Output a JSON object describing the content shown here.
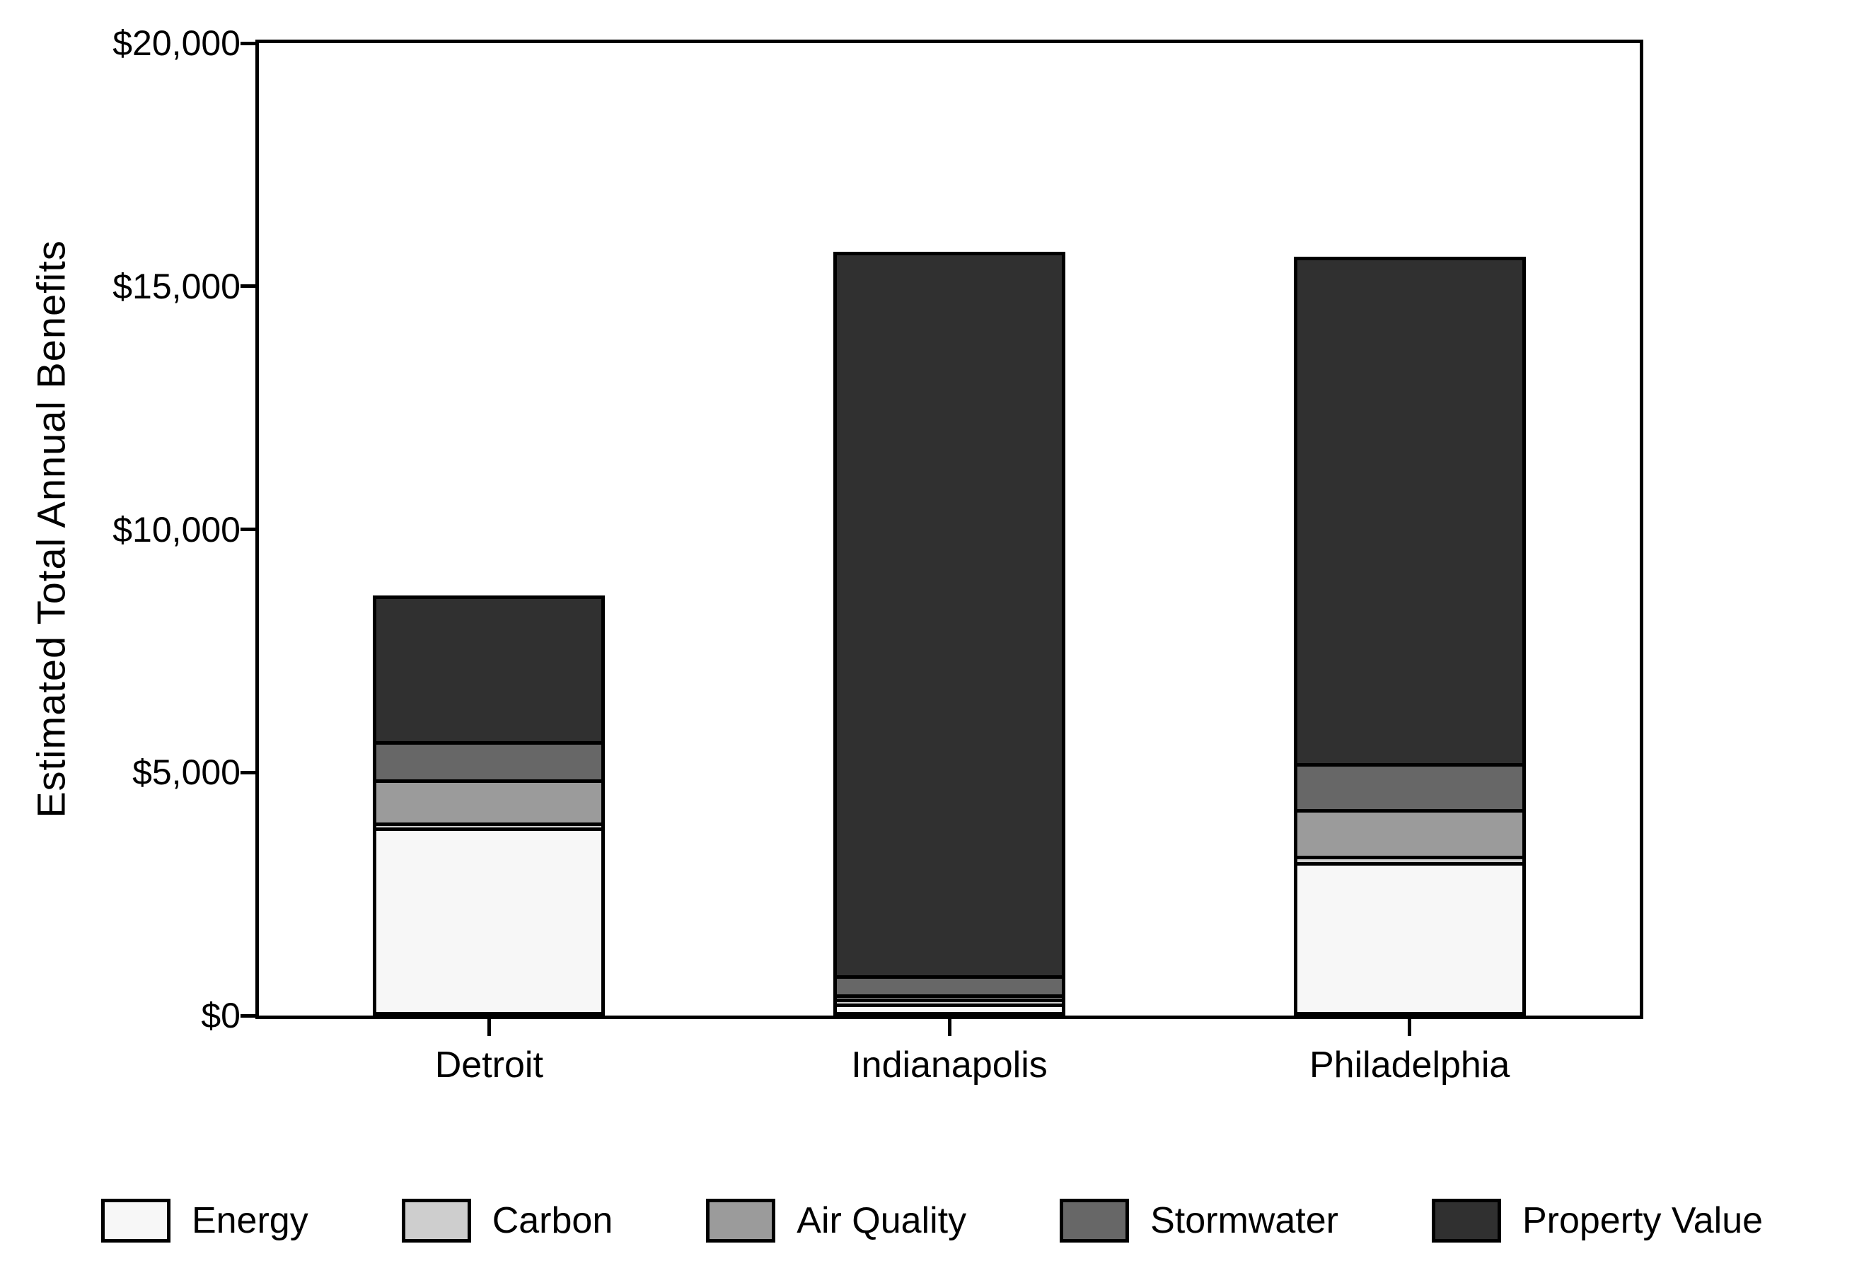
{
  "chart_data": {
    "type": "bar",
    "stacked": true,
    "title": "",
    "xlabel": "",
    "ylabel": "Estimated Total Annual Benefits",
    "categories": [
      "Detroit",
      "Indianapolis",
      "Philadelphia"
    ],
    "series": [
      {
        "name": "Energy",
        "color": "#f7f7f7",
        "values": [
          3800,
          180,
          3080
        ]
      },
      {
        "name": "Carbon",
        "color": "#cecece",
        "values": [
          100,
          90,
          130
        ]
      },
      {
        "name": "Air Quality",
        "color": "#9b9b9b",
        "values": [
          890,
          100,
          970
        ]
      },
      {
        "name": "Stormwater",
        "color": "#676767",
        "values": [
          780,
          390,
          940
        ]
      },
      {
        "name": "Property Value",
        "color": "#303030",
        "values": [
          2930,
          14800,
          10340
        ]
      }
    ],
    "approx_totals": [
      8500,
      15560,
      15460
    ],
    "ylim": [
      0,
      20000
    ],
    "yticks": [
      {
        "value": 0,
        "label": "$0"
      },
      {
        "value": 5000,
        "label": "$5,000"
      },
      {
        "value": 10000,
        "label": "$10,000"
      },
      {
        "value": 15000,
        "label": "$15,000"
      },
      {
        "value": 20000,
        "label": "$20,000"
      }
    ],
    "grid": false,
    "legend_position": "bottom",
    "bar_outline_color": "#000000",
    "background_color": "#ffffff"
  }
}
